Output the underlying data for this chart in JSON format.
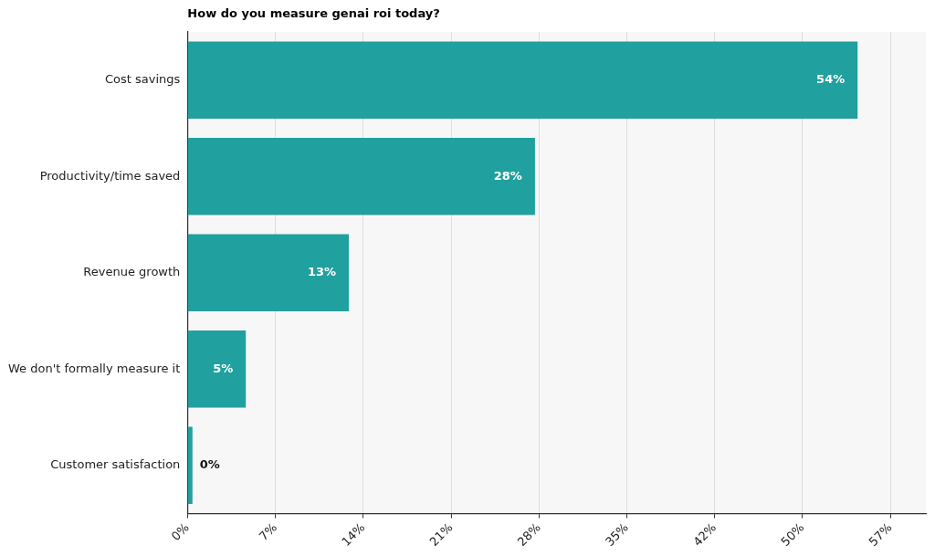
{
  "chart_data": {
    "type": "bar",
    "orientation": "horizontal",
    "title": "How do you measure genai roi today?",
    "categories": [
      "Cost savings",
      "Productivity/time saved",
      "Revenue growth",
      "We don't formally measure it",
      "Customer satisfaction"
    ],
    "values": [
      54,
      28,
      13,
      4.7,
      0.4
    ],
    "value_labels": [
      "54%",
      "28%",
      "13%",
      "5%",
      "0%"
    ],
    "color": "#20a09e",
    "xlim": [
      0,
      59.5
    ],
    "xticks": [
      {
        "value": 0,
        "label": "0%"
      },
      {
        "value": 7.08,
        "label": "7%"
      },
      {
        "value": 14.16,
        "label": "14%"
      },
      {
        "value": 21.24,
        "label": "21%"
      },
      {
        "value": 28.32,
        "label": "28%"
      },
      {
        "value": 35.4,
        "label": "35%"
      },
      {
        "value": 42.48,
        "label": "42%"
      },
      {
        "value": 49.56,
        "label": "50%"
      },
      {
        "value": 56.64,
        "label": "57%"
      }
    ],
    "grid": "x",
    "legend": false
  }
}
